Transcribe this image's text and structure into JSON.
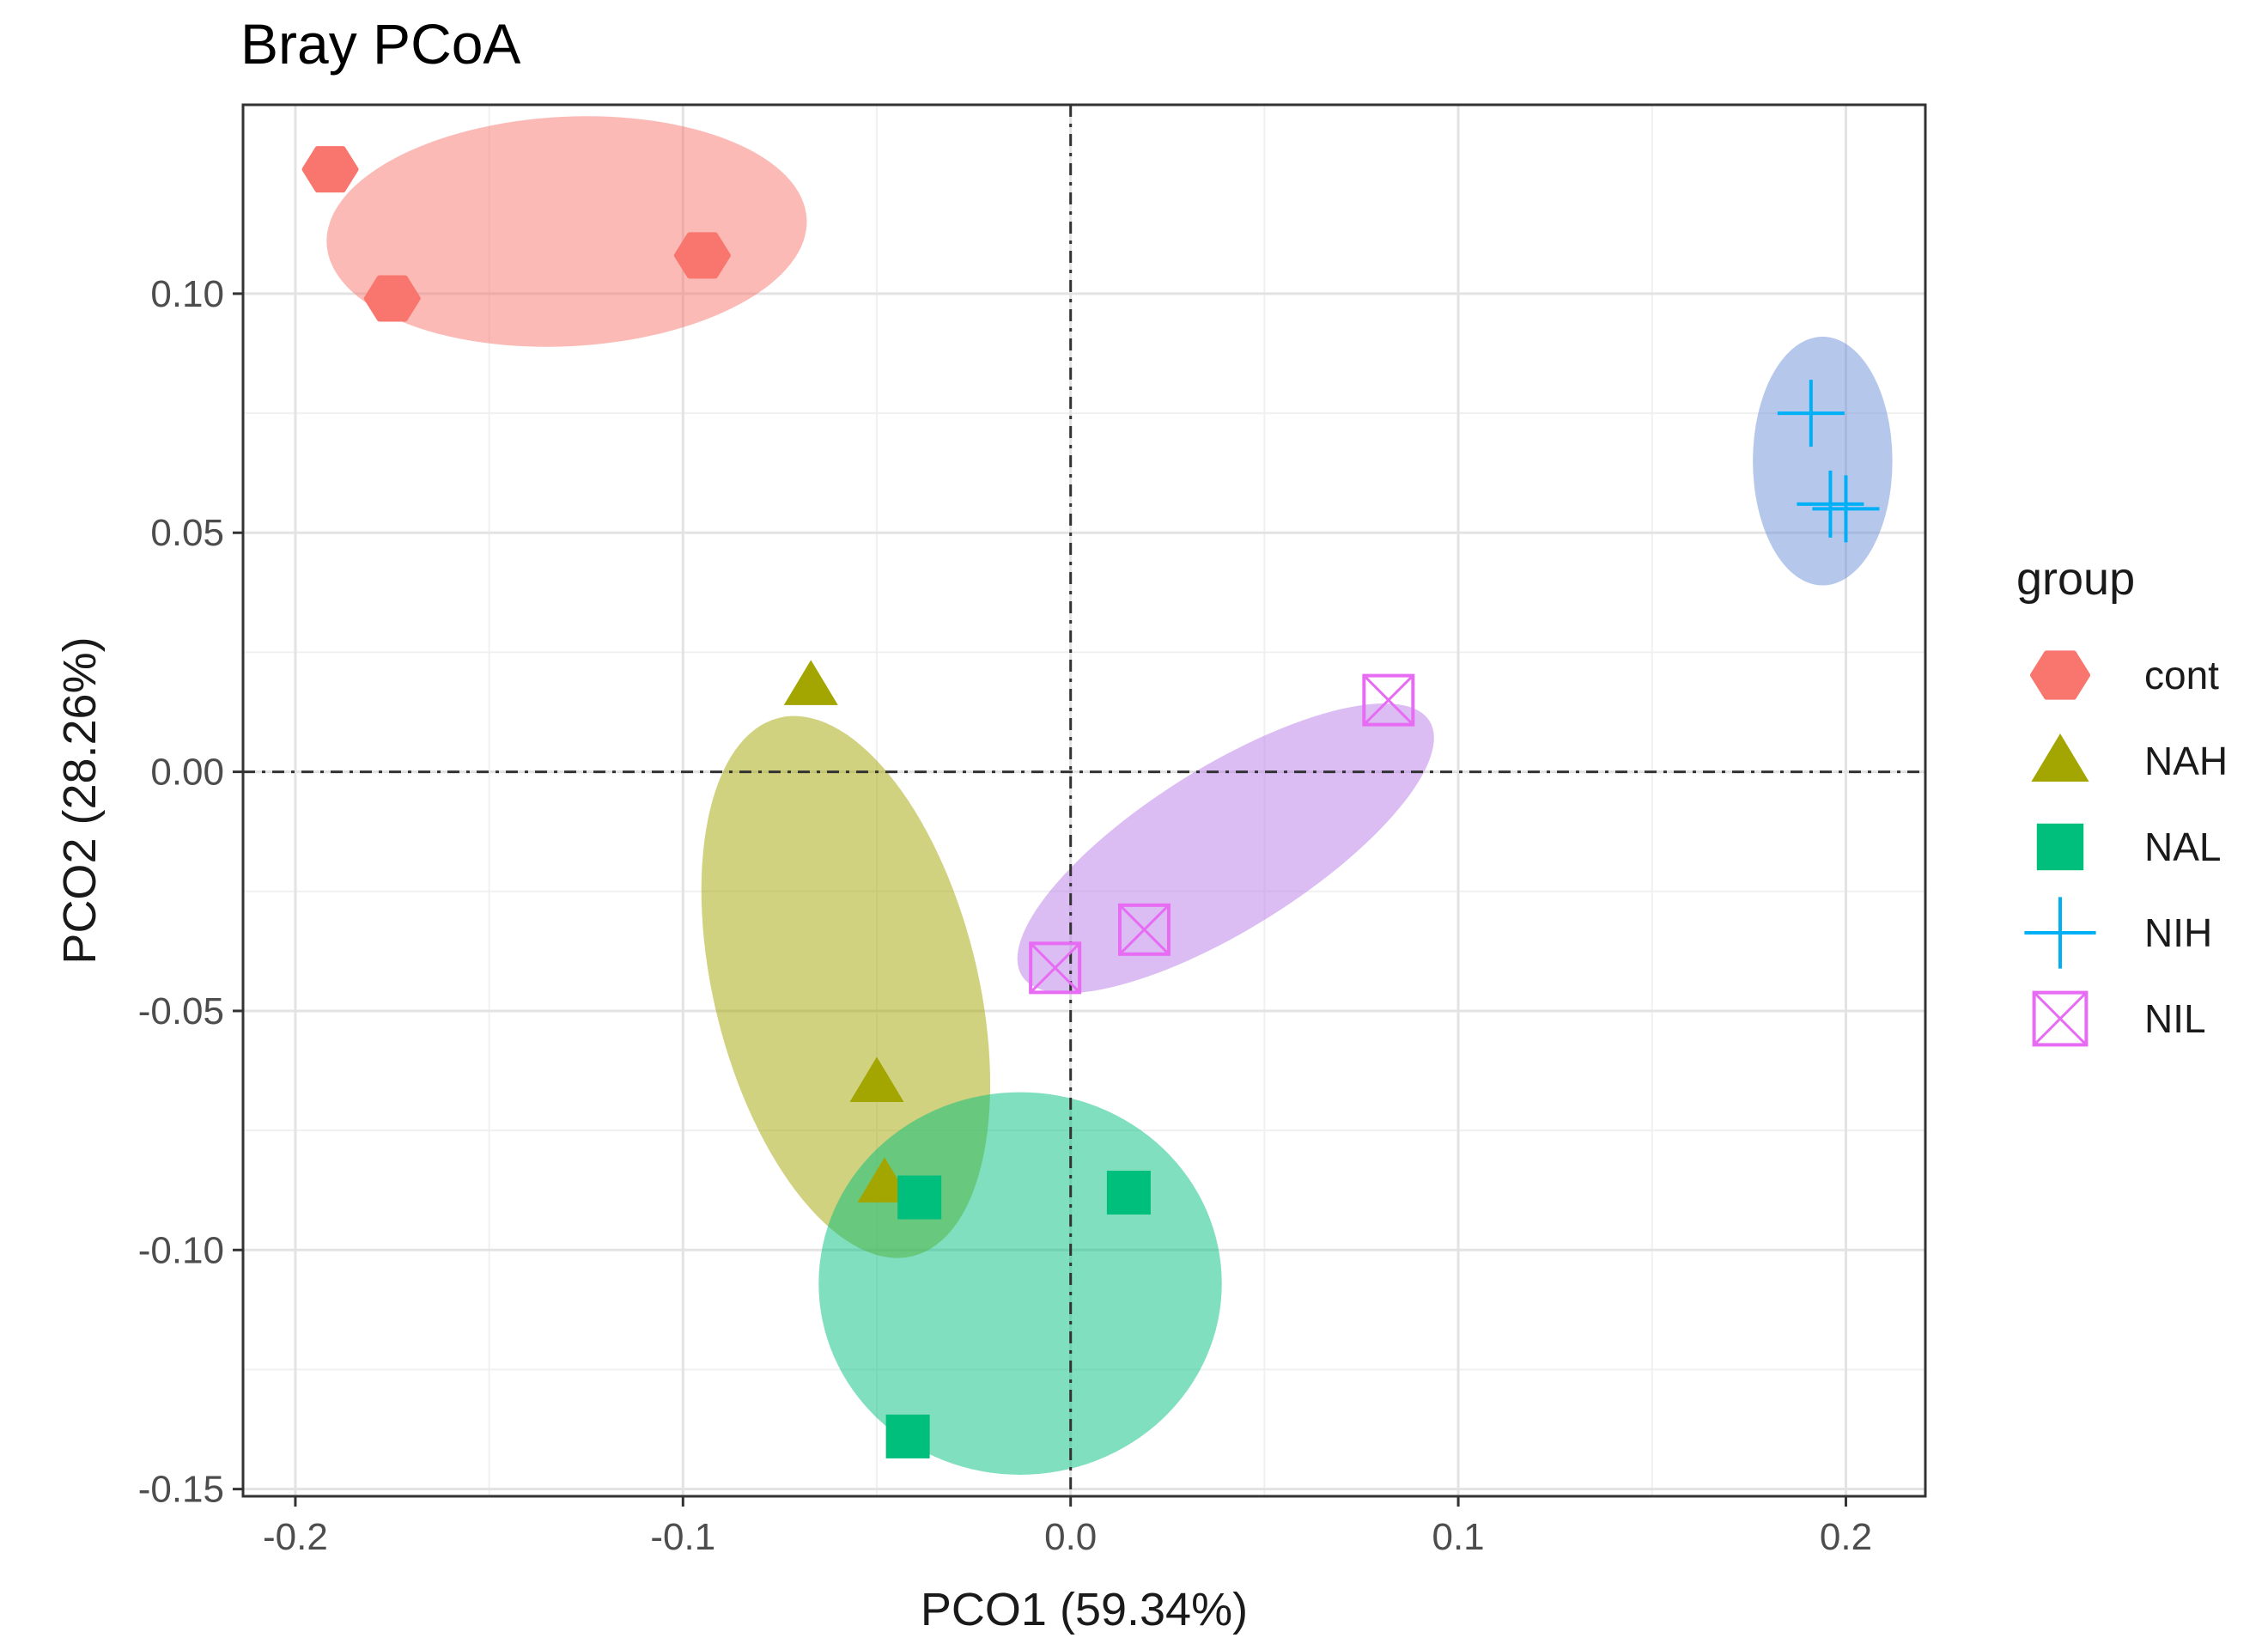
{
  "chart_data": {
    "type": "scatter",
    "title": "Bray PCoA",
    "xlabel": "PCO1 (59.34%)",
    "ylabel": "PCO2 (28.26%)",
    "xlim": [
      -0.2135,
      0.2205
    ],
    "ylim": [
      -0.1515,
      0.1395
    ],
    "x_ticks": [
      {
        "value": -0.2,
        "label": "-0.2"
      },
      {
        "value": -0.1,
        "label": "-0.1"
      },
      {
        "value": 0.0,
        "label": "0.0"
      },
      {
        "value": 0.1,
        "label": "0.1"
      },
      {
        "value": 0.2,
        "label": "0.2"
      }
    ],
    "y_ticks": [
      {
        "value": 0.1,
        "label": "0.10"
      },
      {
        "value": 0.05,
        "label": "0.05"
      },
      {
        "value": 0.0,
        "label": "0.00"
      },
      {
        "value": -0.05,
        "label": "-0.05"
      },
      {
        "value": -0.1,
        "label": "-0.10"
      },
      {
        "value": -0.15,
        "label": "-0.15"
      }
    ],
    "grid": true,
    "reference_lines": {
      "x": 0,
      "y": 0,
      "style": "dashdot"
    },
    "legend": {
      "title": "group",
      "position": "right"
    },
    "series": [
      {
        "name": "cont",
        "color": "#F8766D",
        "marker": "diamond",
        "ellipse": {
          "cx": -0.13,
          "cy": 0.113,
          "rx": 0.062,
          "ry": 0.024,
          "angle_deg": -3
        },
        "points": [
          {
            "x": -0.191,
            "y": 0.126
          },
          {
            "x": -0.175,
            "y": 0.099
          },
          {
            "x": -0.095,
            "y": 0.108
          }
        ]
      },
      {
        "name": "NAH",
        "color": "#A3A500",
        "marker": "triangle",
        "ellipse": {
          "cx": -0.058,
          "cy": -0.045,
          "rx": 0.034,
          "ry": 0.058,
          "angle_deg": -14
        },
        "points": [
          {
            "x": -0.067,
            "y": 0.018
          },
          {
            "x": -0.05,
            "y": -0.065
          },
          {
            "x": -0.048,
            "y": -0.086
          }
        ]
      },
      {
        "name": "NAL",
        "color": "#00BF7D",
        "marker": "square",
        "ellipse": {
          "cx": -0.013,
          "cy": -0.107,
          "rx": 0.052,
          "ry": 0.04,
          "angle_deg": 0
        },
        "points": [
          {
            "x": -0.039,
            "y": -0.089
          },
          {
            "x": 0.015,
            "y": -0.088
          },
          {
            "x": -0.042,
            "y": -0.139
          }
        ]
      },
      {
        "name": "NIH",
        "color": "#00B0F6",
        "fill_color": "#6e8fd9",
        "marker": "plus",
        "ellipse": {
          "cx": 0.194,
          "cy": 0.065,
          "rx": 0.018,
          "ry": 0.026,
          "angle_deg": 0
        },
        "points": [
          {
            "x": 0.191,
            "y": 0.075
          },
          {
            "x": 0.196,
            "y": 0.056
          },
          {
            "x": 0.2,
            "y": 0.055
          }
        ]
      },
      {
        "name": "NIL",
        "color": "#E76BF3",
        "fill_color": "#b77be8",
        "marker": "square-x",
        "ellipse": {
          "cx": 0.04,
          "cy": -0.016,
          "rx": 0.062,
          "ry": 0.017,
          "angle_deg": -32
        },
        "points": [
          {
            "x": 0.082,
            "y": 0.015
          },
          {
            "x": 0.019,
            "y": -0.033
          },
          {
            "x": -0.004,
            "y": -0.041
          }
        ]
      }
    ]
  }
}
